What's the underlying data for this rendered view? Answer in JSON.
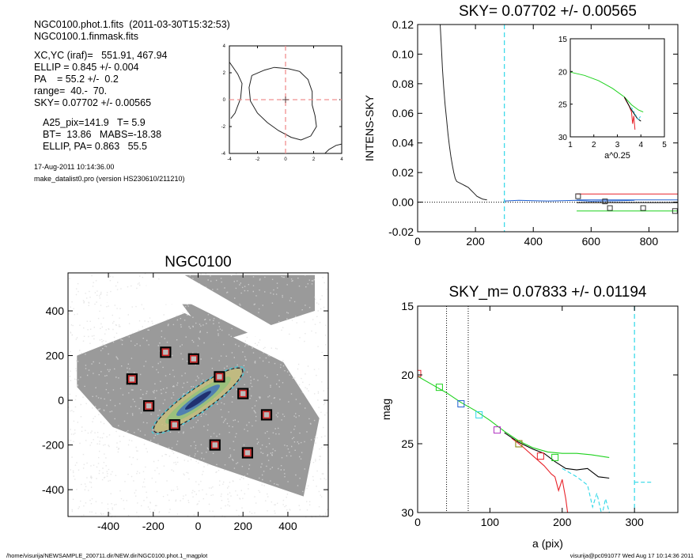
{
  "header": {
    "lines": [
      "NGC0100.phot.1.fits  (2011-03-30T15:32:53)",
      "NGC0100.1.finmask.fits"
    ],
    "params": [
      "XC,YC (iraf)=   551.91, 467.94",
      "ELLIP = 0.845 +/- 0.004",
      "PA    = 55.2 +/-  0.2",
      "range=  40.-  70.",
      "SKY= 0.07702 +/- 0.00565"
    ],
    "stats": [
      "A25_pix=141.9   T= 5.9",
      "BT=  13.86   MABS=-18.38",
      "ELLIP, PA= 0.863   55.5"
    ],
    "date": "17-Aug-2011 10:14:36.00",
    "program": "make_datalist0.pro (version HS230610/211210)"
  },
  "footer": {
    "left": "/home/visurija/NEWSAMPLE_200711.dir/NEW.dir/NGC0100.phot.1_magplot",
    "right": "visurija@pc091077  Wed Aug 17 10:14:36 2011"
  },
  "colors": {
    "black": "#000000",
    "red": "#e8242b",
    "green": "#1ed21e",
    "blue": "#2060d0",
    "cyan": "#30d8e8",
    "purple": "#b030c0",
    "olive": "#808000",
    "pinkdash": "#f09090"
  },
  "chart_data": [
    {
      "id": "center",
      "type": "line",
      "title": "",
      "xlim": [
        -4,
        4
      ],
      "ylim": [
        -4,
        4
      ],
      "xticks": [
        -4,
        -2,
        0,
        2,
        4
      ],
      "yticks": [
        -4,
        -2,
        0,
        2,
        4
      ],
      "xtick_labels": [
        "-4",
        "-2",
        "0",
        "2",
        "4"
      ],
      "ytick_labels": [
        "-4",
        "-2",
        "0",
        "2",
        "4"
      ],
      "contour": [
        [
          -2.4,
          1.8
        ],
        [
          -1.5,
          2.2
        ],
        [
          -0.8,
          2.4
        ],
        [
          0.2,
          2.3
        ],
        [
          1.0,
          2.1
        ],
        [
          1.6,
          1.5
        ],
        [
          1.9,
          0.6
        ],
        [
          1.9,
          -0.4
        ],
        [
          2.1,
          -1.2
        ],
        [
          2.2,
          -2.0
        ],
        [
          1.8,
          -2.7
        ],
        [
          1.1,
          -3.0
        ],
        [
          0.4,
          -2.8
        ],
        [
          -0.5,
          -2.3
        ],
        [
          -1.3,
          -1.7
        ],
        [
          -2.0,
          -1.0
        ],
        [
          -2.5,
          -0.1
        ],
        [
          -2.6,
          0.9
        ],
        [
          -2.4,
          1.8
        ]
      ],
      "outer_contour": [
        [
          -4,
          2.8
        ],
        [
          -3.4,
          1.9
        ],
        [
          -3.1,
          1.2
        ],
        [
          -3.2,
          0.1
        ],
        [
          -3.6,
          -1.0
        ],
        [
          -3.9,
          -1.4
        ]
      ],
      "outer_contour2": [
        [
          4,
          -3.3
        ],
        [
          3.6,
          -3.4
        ],
        [
          3.1,
          -3.7
        ],
        [
          2.8,
          -4.0
        ]
      ],
      "crosshair": [
        0,
        0
      ]
    },
    {
      "id": "profile",
      "type": "line",
      "title": "SKY= 0.07702 +/- 0.00565",
      "xlabel": "",
      "ylabel": "INTENS-SKY",
      "xlim": [
        0,
        900
      ],
      "ylim": [
        -0.02,
        0.12
      ],
      "xticks": [
        0,
        200,
        400,
        600,
        800
      ],
      "yticks": [
        -0.02,
        0.0,
        0.02,
        0.04,
        0.06,
        0.08,
        0.1,
        0.12
      ],
      "xtick_labels": [
        "0",
        "200",
        "400",
        "600",
        "800"
      ],
      "ytick_labels": [
        "-0.02",
        "0.00",
        "0.02",
        "0.04",
        "0.06",
        "0.08",
        "0.10",
        "0.12"
      ],
      "vline_cyan": 300,
      "profile": [
        [
          78,
          0.12
        ],
        [
          82,
          0.105
        ],
        [
          86,
          0.09
        ],
        [
          90,
          0.078
        ],
        [
          95,
          0.066
        ],
        [
          100,
          0.056
        ],
        [
          105,
          0.046
        ],
        [
          110,
          0.038
        ],
        [
          115,
          0.031
        ],
        [
          120,
          0.025
        ],
        [
          125,
          0.02
        ],
        [
          130,
          0.016
        ],
        [
          135,
          0.014
        ],
        [
          145,
          0.013
        ],
        [
          155,
          0.012
        ],
        [
          165,
          0.011
        ],
        [
          175,
          0.01
        ],
        [
          185,
          0.008
        ],
        [
          195,
          0.006
        ],
        [
          205,
          0.004
        ],
        [
          215,
          0.003
        ],
        [
          225,
          0.002
        ],
        [
          240,
          0.0015
        ]
      ],
      "blue_curve": [
        [
          300,
          0.0008
        ],
        [
          350,
          0.0012
        ],
        [
          400,
          0.001
        ],
        [
          450,
          0.0008
        ],
        [
          500,
          0.001
        ],
        [
          550,
          0.0012
        ],
        [
          600,
          0.0006
        ],
        [
          650,
          0.0008
        ],
        [
          700,
          0.001
        ],
        [
          750,
          0.0012
        ]
      ],
      "squares": [
        [
          555,
          0.004
        ],
        [
          648,
          0.0005
        ],
        [
          665,
          -0.004
        ],
        [
          780,
          -0.004
        ],
        [
          890,
          -0.006
        ]
      ],
      "lines": [
        {
          "color": "red",
          "x": [
            550,
            900
          ],
          "y": [
            0.0055,
            0.0055
          ]
        },
        {
          "color": "green",
          "x": [
            550,
            900
          ],
          "y": [
            -0.006,
            -0.006
          ]
        },
        {
          "color": "black",
          "x": [
            550,
            900
          ],
          "y": [
            -0.0003,
            -0.0003
          ]
        },
        {
          "color": "blue",
          "x": [
            550,
            900
          ],
          "y": [
            0.0015,
            0.0015
          ]
        }
      ],
      "zero_line": 0
    },
    {
      "id": "inset",
      "type": "line",
      "xlabel": "a^0.25",
      "xlim": [
        1,
        5
      ],
      "ylim": [
        15,
        30
      ],
      "xticks": [
        1,
        2,
        3,
        4,
        5
      ],
      "yticks": [
        15,
        20,
        25,
        30
      ],
      "xtick_labels": [
        "1",
        "2",
        "3",
        "4",
        "5"
      ],
      "ytick_labels": [
        "15",
        "20",
        "25",
        "30"
      ],
      "series": [
        {
          "color": "green",
          "points": [
            [
              1.0,
              20.1
            ],
            [
              1.6,
              20.6
            ],
            [
              2.2,
              21.4
            ],
            [
              2.8,
              22.6
            ],
            [
              3.3,
              23.9
            ],
            [
              3.6,
              25.1
            ],
            [
              3.9,
              25.9
            ],
            [
              4.1,
              26.2
            ]
          ]
        },
        {
          "color": "red",
          "points": [
            [
              3.3,
              24.0
            ],
            [
              3.5,
              25.3
            ],
            [
              3.6,
              26.2
            ],
            [
              3.65,
              28.0
            ],
            [
              3.7,
              26.8
            ],
            [
              3.75,
              28.9
            ]
          ]
        },
        {
          "color": "black",
          "points": [
            [
              3.3,
              23.9
            ],
            [
              3.55,
              25.6
            ],
            [
              3.7,
              26.4
            ],
            [
              3.85,
              27.2
            ],
            [
              4.0,
              27.6
            ]
          ]
        },
        {
          "color": "cyan",
          "points": [
            [
              3.6,
              25.5
            ],
            [
              3.8,
              26.8
            ],
            [
              3.9,
              27.4
            ],
            [
              4.0,
              26.7
            ]
          ]
        }
      ]
    },
    {
      "id": "image",
      "type": "scatter",
      "title": "NGC0100",
      "xlim": [
        -580,
        580
      ],
      "ylim": [
        -520,
        570
      ],
      "xticks": [
        -400,
        -200,
        0,
        200,
        400
      ],
      "yticks": [
        -400,
        -200,
        0,
        200,
        400
      ],
      "xtick_labels": [
        "-400",
        "-200",
        "0",
        "200",
        "400"
      ],
      "ytick_labels": [
        "-400",
        "-200",
        "0",
        "200",
        "400"
      ],
      "squares": [
        [
          -145,
          215
        ],
        [
          -20,
          185
        ],
        [
          -295,
          95
        ],
        [
          95,
          105
        ],
        [
          200,
          30
        ],
        [
          -220,
          -25
        ],
        [
          305,
          -65
        ],
        [
          -105,
          -110
        ],
        [
          75,
          -200
        ],
        [
          220,
          -235
        ]
      ],
      "galaxy": {
        "cx": 0,
        "cy": 0,
        "a": 235,
        "b": 50,
        "pa": -35
      }
    },
    {
      "id": "magplot",
      "type": "line",
      "title": "SKY_m=  0.07833 +/- 0.01194",
      "xlabel": "a (pix)",
      "ylabel": "mag",
      "xlim": [
        0,
        360
      ],
      "ylim": [
        30,
        15
      ],
      "xticks": [
        0,
        100,
        200,
        300
      ],
      "yticks": [
        15,
        20,
        25,
        30
      ],
      "xtick_labels": [
        "0",
        "100",
        "200",
        "300"
      ],
      "ytick_labels": [
        "15",
        "20",
        "25",
        "30"
      ],
      "vlines_dotted": [
        40,
        70
      ],
      "vline_cyan": 300,
      "series": [
        {
          "color": "green",
          "points": [
            [
              0,
              20.1
            ],
            [
              20,
              20.7
            ],
            [
              40,
              21.3
            ],
            [
              60,
              22.0
            ],
            [
              80,
              22.6
            ],
            [
              100,
              23.3
            ],
            [
              120,
              24.1
            ],
            [
              140,
              24.8
            ],
            [
              160,
              25.3
            ],
            [
              180,
              25.6
            ],
            [
              200,
              25.7
            ],
            [
              220,
              25.7
            ],
            [
              240,
              25.8
            ],
            [
              265,
              26.0
            ]
          ]
        },
        {
          "color": "red",
          "points": [
            [
              130,
              24.6
            ],
            [
              145,
              25.2
            ],
            [
              160,
              25.9
            ],
            [
              175,
              26.6
            ],
            [
              185,
              27.2
            ],
            [
              190,
              27.4
            ],
            [
              195,
              28.4
            ],
            [
              200,
              27.6
            ],
            [
              205,
              29.0
            ],
            [
              210,
              31.0
            ]
          ]
        },
        {
          "color": "black",
          "points": [
            [
              120,
              24.2
            ],
            [
              140,
              24.9
            ],
            [
              160,
              25.4
            ],
            [
              175,
              25.7
            ],
            [
              190,
              26.3
            ],
            [
              205,
              26.8
            ],
            [
              220,
              26.9
            ],
            [
              235,
              26.8
            ],
            [
              250,
              27.4
            ],
            [
              265,
              27.5
            ]
          ]
        },
        {
          "color": "cyan",
          "dash": true,
          "points": [
            [
              200,
              26.8
            ],
            [
              220,
              27.4
            ],
            [
              235,
              28.0
            ],
            [
              242,
              29.6
            ],
            [
              248,
              28.6
            ],
            [
              255,
              30.2
            ],
            [
              260,
              29.0
            ],
            [
              268,
              30.5
            ]
          ]
        },
        {
          "color": "cyan",
          "dash": true,
          "points": [
            [
              300,
              27.8
            ],
            [
              325,
              27.8
            ]
          ]
        }
      ],
      "squares": [
        {
          "color": "red",
          "x": 0,
          "y": 19.9
        },
        {
          "color": "green",
          "x": 30,
          "y": 20.9
        },
        {
          "color": "blue",
          "x": 60,
          "y": 22.1
        },
        {
          "color": "cyan",
          "x": 85,
          "y": 22.9
        },
        {
          "color": "purple",
          "x": 110,
          "y": 24.0
        },
        {
          "color": "olive",
          "x": 140,
          "y": 25.0
        },
        {
          "color": "red",
          "x": 170,
          "y": 25.9
        },
        {
          "color": "green",
          "x": 190,
          "y": 26.0
        }
      ]
    }
  ]
}
